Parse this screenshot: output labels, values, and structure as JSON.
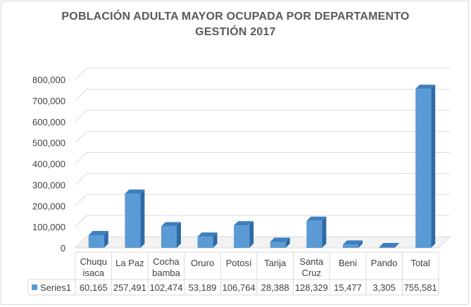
{
  "chart_data": {
    "type": "bar",
    "title_lines": [
      "POBLACIÓN ADULTA MAYOR OCUPADA POR DEPARTAMENTO",
      "GESTIÓN 2017"
    ],
    "categories": [
      [
        "Chuqu",
        "isaca"
      ],
      [
        "La Paz"
      ],
      [
        "Cocha",
        "bamba"
      ],
      [
        "Oruro"
      ],
      [
        "Potosí"
      ],
      [
        "Tarija"
      ],
      [
        "Santa",
        "Cruz"
      ],
      [
        "Beni"
      ],
      [
        "Pando"
      ],
      [
        "Total"
      ]
    ],
    "series": [
      {
        "name": "Series1",
        "values": [
          60165,
          257491,
          102474,
          53189,
          106764,
          28388,
          128329,
          15477,
          3305,
          755581
        ],
        "value_labels": [
          "60,165",
          "257,491",
          "102,474",
          "53,189",
          "106,764",
          "28,388",
          "128,329",
          "15,477",
          "3,305",
          "755,581"
        ]
      }
    ],
    "ylim": [
      0,
      800000
    ],
    "yticks": [
      0,
      100000,
      200000,
      300000,
      400000,
      500000,
      600000,
      700000,
      800000
    ],
    "ytick_labels": [
      "0",
      "100,000",
      "200,000",
      "300,000",
      "400,000",
      "500,000",
      "600,000",
      "700,000",
      "800,000"
    ],
    "grid": true,
    "style": "3d-column",
    "data_table": true,
    "colors": {
      "bar_front": "#5b9bd5",
      "bar_side": "#2e6aa6",
      "bar_top": "#3f7fbf",
      "grid": "#d9d9d9",
      "text": "#404040",
      "title": "#595959"
    }
  }
}
